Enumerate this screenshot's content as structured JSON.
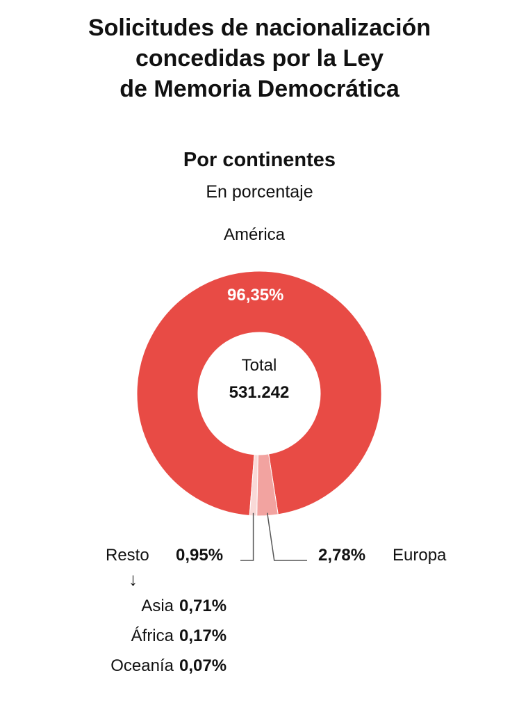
{
  "chart_data": {
    "type": "pie",
    "title_lines": [
      "Solicitudes de nacionalización",
      "concedidas por la Ley",
      "de Memoria Democrática"
    ],
    "subtitle": "Por continentes",
    "unit_label": "En porcentaje",
    "center": {
      "label": "Total",
      "value": "531.242"
    },
    "slices": [
      {
        "name": "América",
        "value": 96.35,
        "display": "96,35%",
        "color": "#e84b45"
      },
      {
        "name": "Europa",
        "value": 2.78,
        "display": "2,78%",
        "color": "#f2a3a0"
      },
      {
        "name": "Resto",
        "value": 0.95,
        "display": "0,95%",
        "color": "#f9d9d7"
      }
    ],
    "resto_arrow": "↓",
    "resto_breakdown": [
      {
        "name": "Asia",
        "display": "0,71%"
      },
      {
        "name": "África",
        "display": "0,17%"
      },
      {
        "name": "Oceanía",
        "display": "0,07%"
      }
    ]
  }
}
